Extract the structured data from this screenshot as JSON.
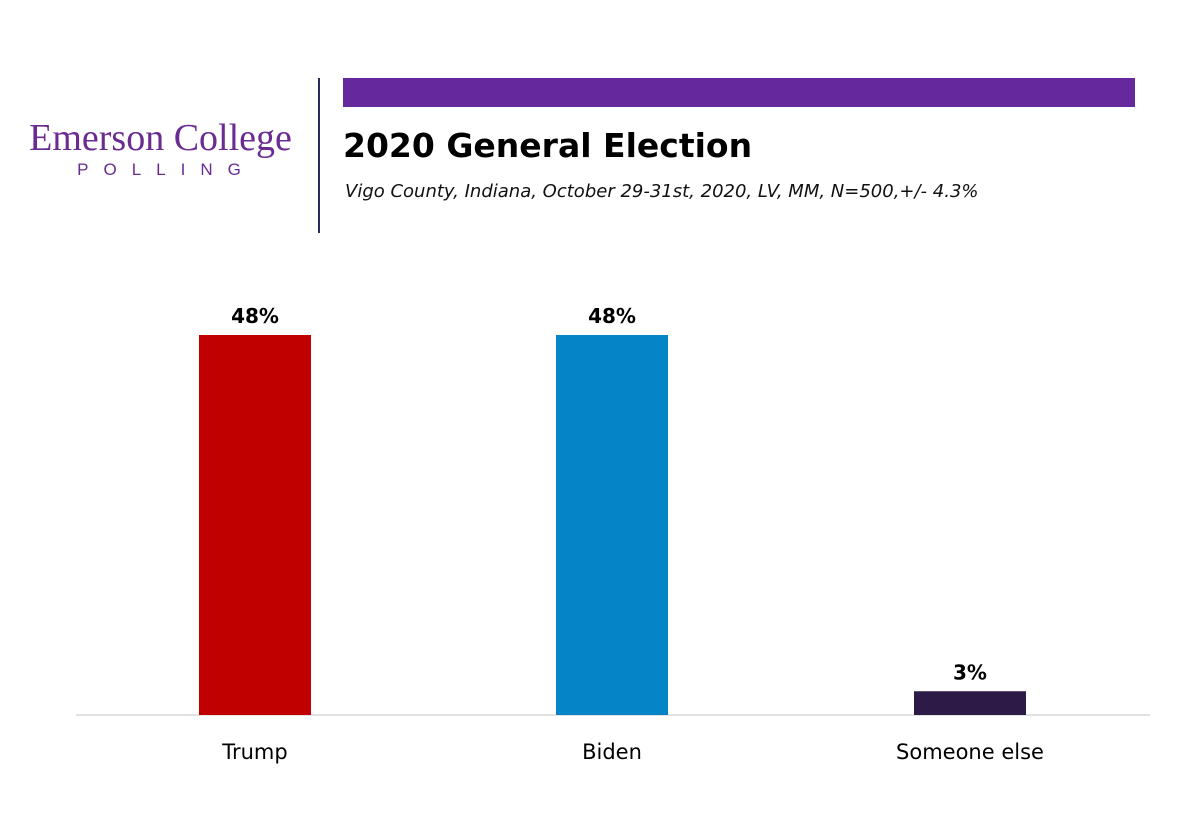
{
  "logo": {
    "name": "Emerson College",
    "tagline": "POLLING"
  },
  "accent_color": "#65299d",
  "title": "2020 General Election",
  "subtitle": "Vigo County, Indiana, October 29-31st, 2020, LV, MM,  N=500,+/- 4.3%",
  "chart_data": {
    "type": "bar",
    "title": "2020 General Election",
    "subtitle": "Vigo County, Indiana, October 29-31st, 2020, LV, MM,  N=500,+/- 4.3%",
    "categories": [
      "Trump",
      "Biden",
      "Someone else"
    ],
    "values": [
      48,
      48,
      3
    ],
    "data_labels": [
      "48%",
      "48%",
      "3%"
    ],
    "colors": [
      "#c00000",
      "#0584c8",
      "#2e1a47"
    ],
    "unit": "%",
    "ylim": [
      0,
      50
    ],
    "grid": false,
    "legend": "none",
    "xlabel": "",
    "ylabel": ""
  }
}
